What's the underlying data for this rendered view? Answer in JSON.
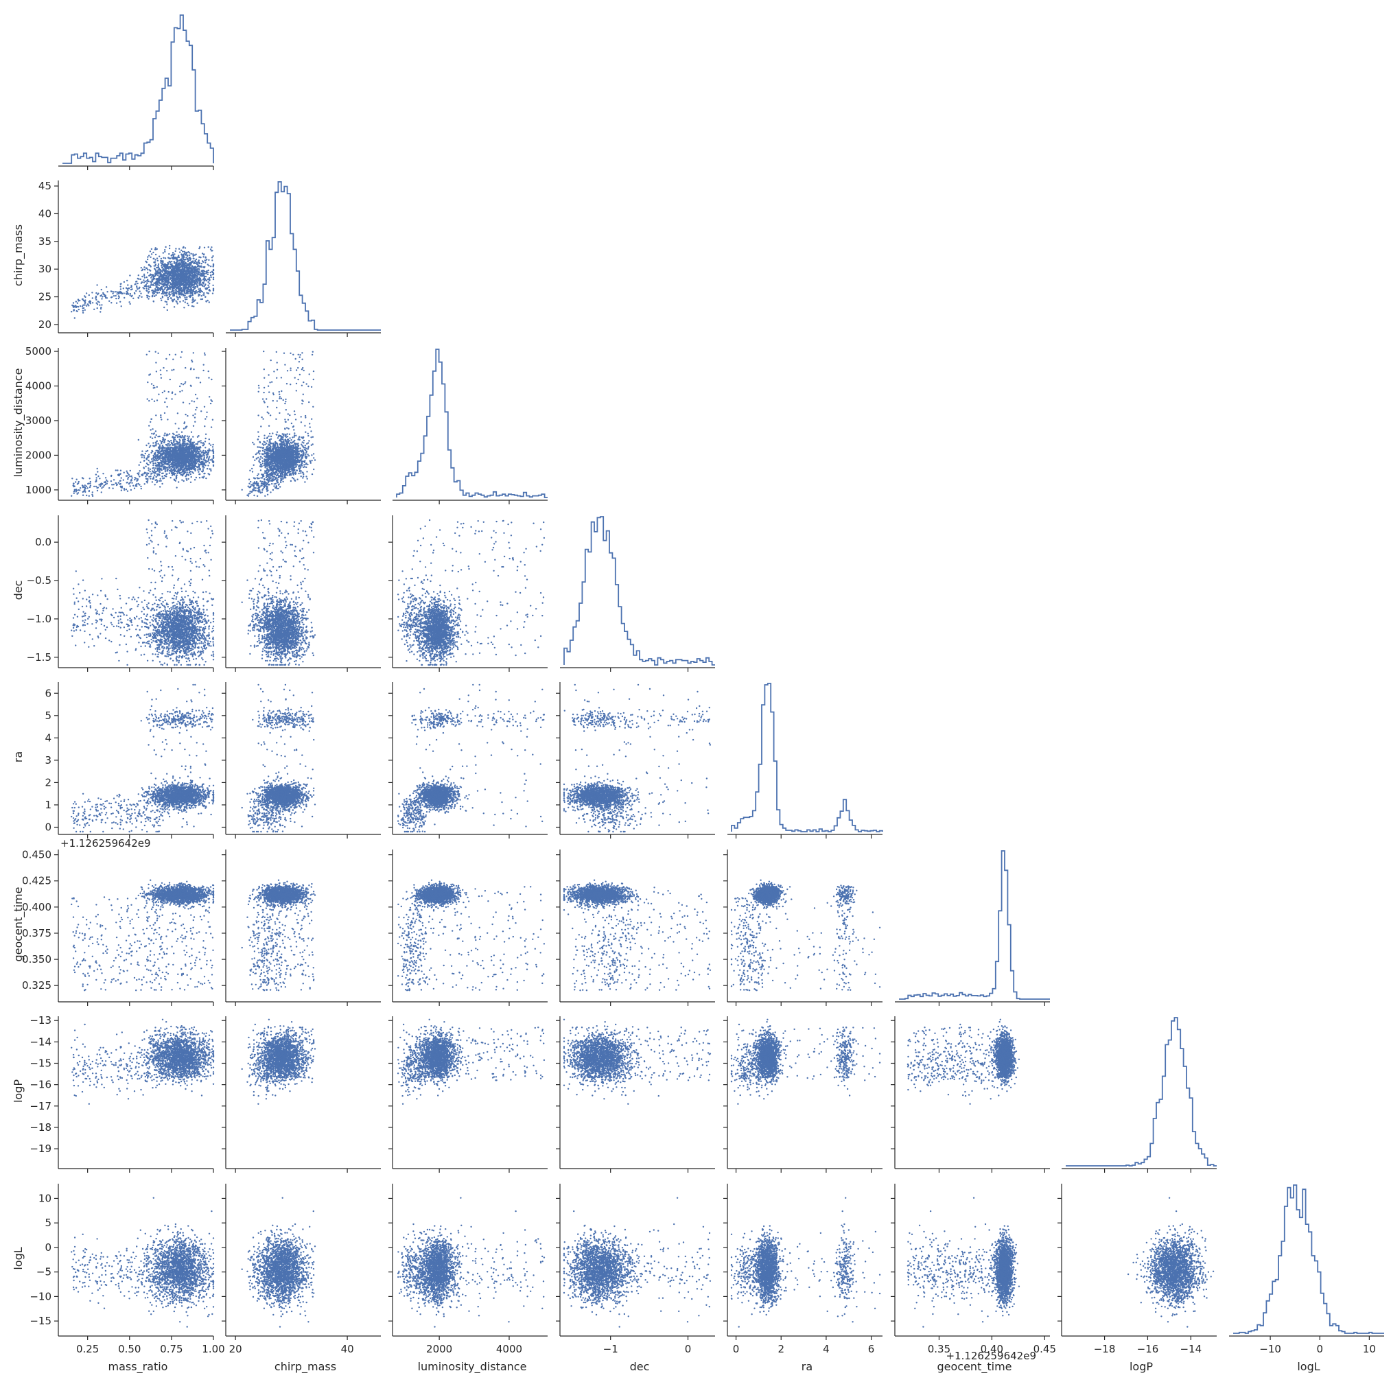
{
  "chart_data": {
    "type": "scatter",
    "layout": "corner-pairplot",
    "marker_color": "#4c72b0",
    "diagonal_type": "step-histogram",
    "parameters": [
      {
        "name": "mass_ratio",
        "label": "mass_ratio",
        "range": [
          0.1,
          1.0
        ],
        "ticks": [
          0.25,
          0.5,
          0.75,
          1.0
        ],
        "tick_labels": [
          "0.25",
          "0.50",
          "0.75",
          "1.00"
        ]
      },
      {
        "name": "chirp_mass",
        "label": "chirp_mass",
        "range": [
          19,
          46
        ],
        "ticks": [
          20,
          25,
          30,
          35,
          40,
          45
        ],
        "tick_labels": [
          "20",
          "25",
          "30",
          "35",
          "40",
          "45"
        ]
      },
      {
        "name": "luminosity_distance",
        "label": "luminosity_distance",
        "range": [
          780,
          5100
        ],
        "ticks": [
          1000,
          2000,
          3000,
          4000,
          5000
        ],
        "tick_labels": [
          "1000",
          "2000",
          "3000",
          "4000",
          "5000"
        ]
      },
      {
        "name": "dec",
        "label": "dec",
        "range": [
          -1.6,
          0.35
        ],
        "ticks": [
          -1.5,
          -1.0,
          -0.5,
          0.0
        ],
        "tick_labels": [
          "−1.5",
          "−1.0",
          "−0.5",
          "0.0"
        ]
      },
      {
        "name": "ra",
        "label": "ra",
        "range": [
          -0.2,
          6.5
        ],
        "ticks": [
          0,
          1,
          2,
          3,
          4,
          5,
          6
        ],
        "tick_labels": [
          "0",
          "1",
          "2",
          "3",
          "4",
          "5",
          "6"
        ]
      },
      {
        "name": "geocent_time",
        "label": "geocent_time",
        "range": [
          0.312,
          0.455
        ],
        "ticks": [
          0.325,
          0.35,
          0.375,
          0.4,
          0.425,
          0.45
        ],
        "tick_labels": [
          "0.325",
          "0.350",
          "0.375",
          "0.400",
          "0.425",
          "0.450"
        ],
        "offset": "+1.126259642e9"
      },
      {
        "name": "logP",
        "label": "logP",
        "range": [
          -19.8,
          -12.8
        ],
        "ticks": [
          -19,
          -18,
          -17,
          -16,
          -15,
          -14,
          -13
        ],
        "tick_labels": [
          "−19",
          "−18",
          "−17",
          "−16",
          "−15",
          "−14",
          "−13"
        ]
      },
      {
        "name": "logL",
        "label": "logL",
        "range": [
          -17.5,
          13
        ],
        "ticks": [
          -15,
          -10,
          -5,
          0,
          5,
          10
        ],
        "tick_labels": [
          "−15",
          "−10",
          "−5",
          "0",
          "5",
          "10"
        ]
      }
    ],
    "x_axis_tick_labels": {
      "mass_ratio": [
        "0.25",
        "0.50",
        "0.75",
        "1.00"
      ],
      "chirp_mass": [
        "20",
        "40"
      ],
      "luminosity_distance": [
        "2000",
        "4000"
      ],
      "dec": [
        "−1",
        "0"
      ],
      "ra": [
        "0",
        "2",
        "4",
        "6"
      ],
      "geocent_time": [
        "0.35",
        "0.40",
        "0.45"
      ],
      "logP": [
        "−18",
        "−16",
        "−14"
      ],
      "logL": [
        "−10",
        "0",
        "10"
      ]
    },
    "marginals": {
      "mass_ratio": {
        "mode": 0.8,
        "peak_region": [
          0.7,
          0.9
        ],
        "tail": "long low tail down to 0.12"
      },
      "chirp_mass": {
        "modes": [
          24,
          29
        ],
        "primary_mode": 29
      },
      "luminosity_distance": {
        "modes": [
          1450,
          2000
        ],
        "primary_mode": 2000
      },
      "dec": {
        "mode": -1.15
      },
      "ra": {
        "modes": [
          1.4,
          4.85
        ],
        "primary_mode": 1.4
      },
      "geocent_time": {
        "mode": 0.413
      },
      "logP": {
        "mode": -14.7
      },
      "logL": {
        "mode": -4.5
      }
    },
    "grid": false,
    "legend": "none"
  }
}
